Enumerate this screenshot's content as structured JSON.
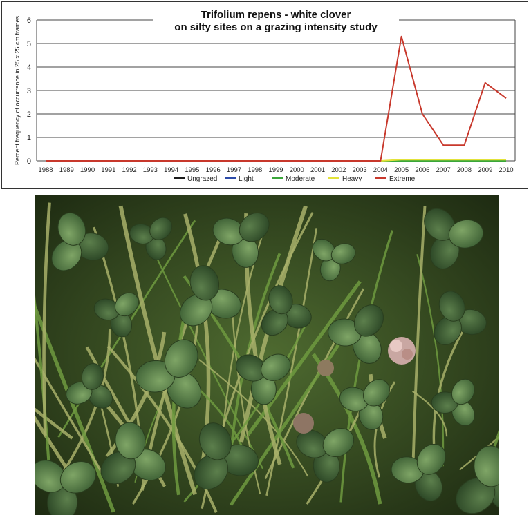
{
  "chart_data": {
    "type": "line",
    "title_line1": "Trifolium repens  -  white clover",
    "title_line2": "on silty sites on a grazing intensity study",
    "ylabel": "Percent frequency of occurrence in 25 x 25 cm frames",
    "xlabel": "",
    "ylim": [
      0,
      6
    ],
    "yticks": [
      0,
      1,
      2,
      3,
      4,
      5,
      6
    ],
    "grid": true,
    "legend_position": "bottom-center",
    "x": [
      "1988",
      "1989",
      "1990",
      "1991",
      "1992",
      "1993",
      "1994",
      "1995",
      "1996",
      "1997",
      "1998",
      "1999",
      "2000",
      "2001",
      "2002",
      "2003",
      "2004",
      "2005",
      "2006",
      "2007",
      "2008",
      "2009",
      "2010"
    ],
    "series": [
      {
        "name": "Ungrazed",
        "color": "#1a1a1a",
        "values": [
          0,
          0,
          0,
          0,
          0,
          0,
          0,
          0,
          0,
          0,
          0,
          0,
          0,
          0,
          0,
          0,
          0,
          0,
          0,
          0,
          0,
          0,
          0
        ]
      },
      {
        "name": "Light",
        "color": "#2b4aa8",
        "values": [
          0,
          0,
          0,
          0,
          0,
          0,
          0,
          0,
          0,
          0,
          0,
          0,
          0,
          0,
          0,
          0,
          0,
          0,
          0,
          0,
          0,
          0,
          0
        ]
      },
      {
        "name": "Moderate",
        "color": "#3aa63a",
        "values": [
          0,
          0,
          0,
          0,
          0,
          0,
          0,
          0,
          0,
          0,
          0,
          0,
          0,
          0,
          0,
          0,
          0,
          0,
          0,
          0,
          0,
          0,
          0
        ]
      },
      {
        "name": "Heavy",
        "color": "#e3e33a",
        "values": [
          0,
          0,
          0,
          0,
          0,
          0,
          0,
          0,
          0,
          0,
          0,
          0,
          0,
          0,
          0,
          0,
          0,
          0.05,
          0.05,
          0.05,
          0.05,
          0.05,
          0.05
        ]
      },
      {
        "name": "Extreme",
        "color": "#c8382c",
        "values": [
          0,
          0,
          0,
          0,
          0,
          0,
          0,
          0,
          0,
          0,
          0,
          0,
          0,
          0,
          0,
          0,
          0,
          5.3,
          2.0,
          0.67,
          0.67,
          3.33,
          2.67
        ]
      }
    ]
  },
  "photo": {
    "subject": "white-clover-photo"
  }
}
